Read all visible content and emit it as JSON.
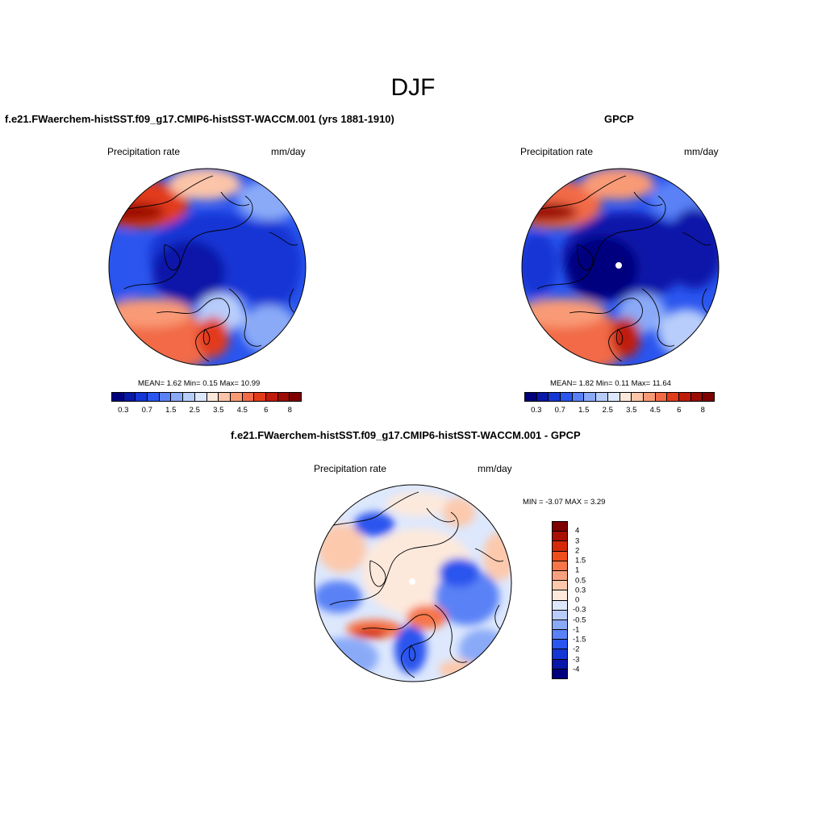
{
  "title": "DJF",
  "panels": {
    "model": {
      "title": "f.e21.FWaerchem-histSST.f09_g17.CMIP6-histSST-WACCM.001 (yrs 1881-1910)",
      "left_label": "Precipitation rate",
      "right_label": "mm/day",
      "stats": "MEAN=   1.62  Min=   0.15  Max=  10.99"
    },
    "obs": {
      "title": "GPCP",
      "left_label": "Precipitation rate",
      "right_label": "mm/day",
      "stats": "MEAN=   1.82  Min=   0.11  Max=  11.64"
    },
    "diff": {
      "title": "f.e21.FWaerchem-histSST.f09_g17.CMIP6-histSST-WACCM.001 - GPCP",
      "left_label": "Precipitation rate",
      "right_label": "mm/day",
      "stats": "MIN =  -3.07 MAX =   3.29"
    }
  },
  "colorbar_abs": {
    "colors": [
      "#00007f",
      "#0818a8",
      "#1436d4",
      "#2a55ee",
      "#5a82f6",
      "#8aaaf8",
      "#b8cdfb",
      "#dde8fd",
      "#fde9dc",
      "#fcc4a8",
      "#f99a76",
      "#f26b46",
      "#e23b1a",
      "#c01a0a",
      "#9c0c05",
      "#7f0000"
    ],
    "tick_labels": [
      "0.3",
      "0.7",
      "1.5",
      "2.5",
      "3.5",
      "4.5",
      "6",
      "8"
    ]
  },
  "colorbar_diff": {
    "colors": [
      "#7f0000",
      "#a80f05",
      "#d42a0a",
      "#ee4d1c",
      "#f6764a",
      "#f9a17e",
      "#fcc9ad",
      "#fde9dc",
      "#dde8fd",
      "#b8cdfb",
      "#8aaaf8",
      "#5a82f6",
      "#2a55ee",
      "#1436d4",
      "#0818a8",
      "#00007f"
    ],
    "tick_labels": [
      "4",
      "3",
      "2",
      "1.5",
      "1",
      "0.5",
      "0.3",
      "0",
      "-0.3",
      "-0.5",
      "-1",
      "-1.5",
      "-2",
      "-3",
      "-4"
    ]
  }
}
